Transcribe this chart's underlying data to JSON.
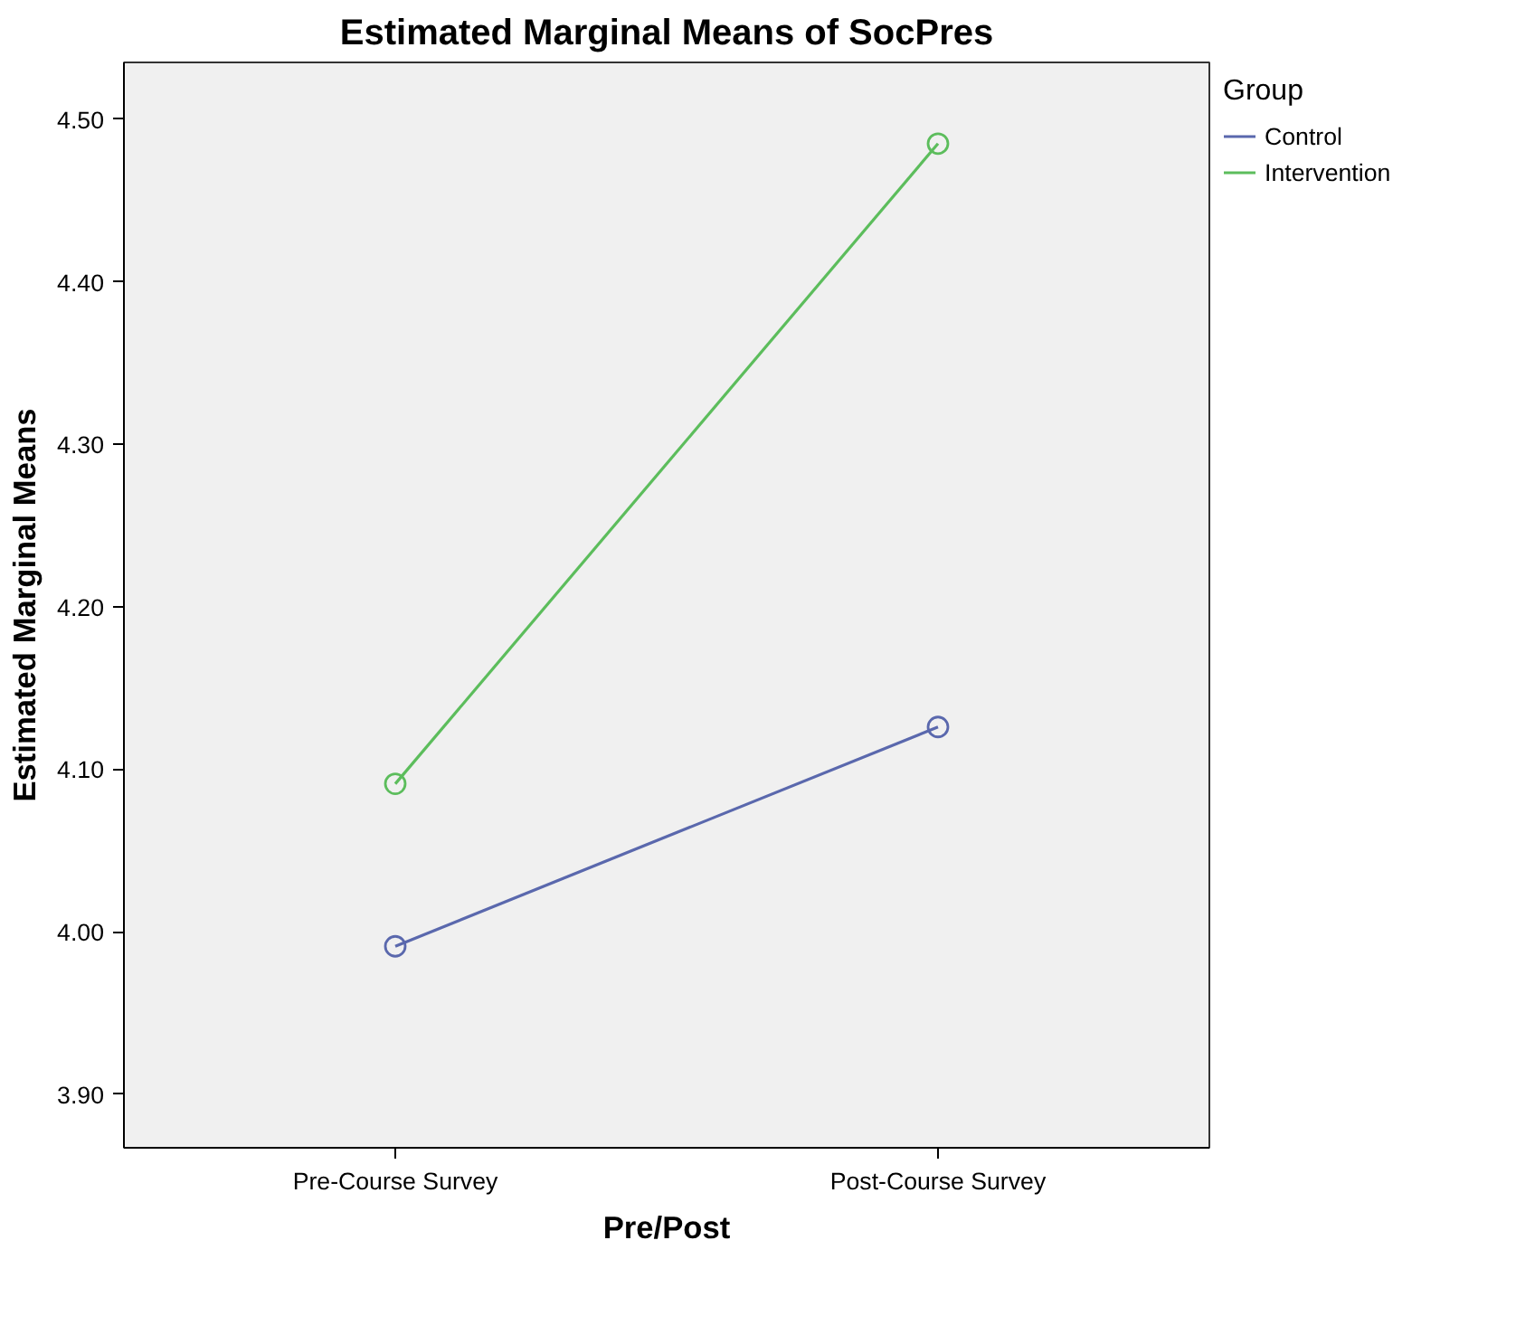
{
  "chart_data": {
    "type": "line",
    "title": "Estimated Marginal Means of SocPres",
    "xlabel": "Pre/Post",
    "ylabel": "Estimated Marginal Means",
    "categories": [
      "Pre-Course Survey",
      "Post-Course Survey"
    ],
    "series": [
      {
        "name": "Control",
        "color": "#5a68ad",
        "values": [
          3.991,
          4.126
        ]
      },
      {
        "name": "Intervention",
        "color": "#5cbd5c",
        "values": [
          4.091,
          4.485
        ]
      }
    ],
    "ylim": [
      3.867,
      4.535
    ],
    "yticks": [
      {
        "value": 3.9,
        "label": "3.90"
      },
      {
        "value": 4.0,
        "label": "4.00"
      },
      {
        "value": 4.1,
        "label": "4.10"
      },
      {
        "value": 4.2,
        "label": "4.20"
      },
      {
        "value": 4.3,
        "label": "4.30"
      },
      {
        "value": 4.4,
        "label": "4.40"
      },
      {
        "value": 4.5,
        "label": "4.50"
      }
    ],
    "legend_title": "Group",
    "legend": "top right",
    "grid": false,
    "marker": "circle",
    "line_style": "solid"
  }
}
